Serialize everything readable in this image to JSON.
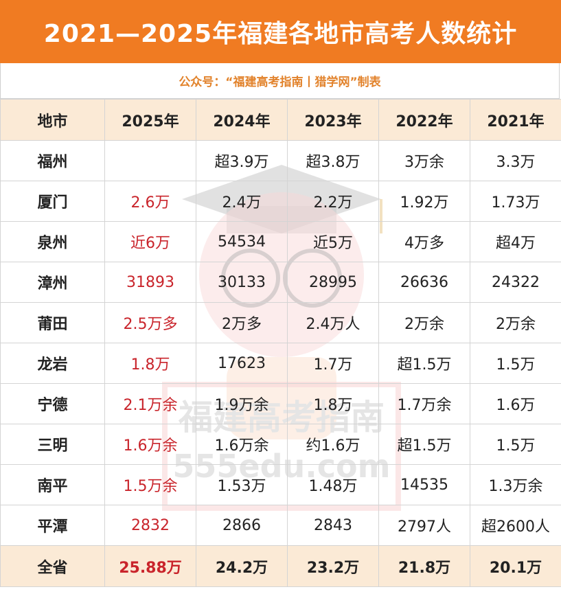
{
  "title": "2021—2025年福建各地市高考人数统计",
  "subtitle": "公众号：“福建高考指南丨猎学网”制表",
  "watermark": {
    "line1": "福建高考指南",
    "line2": "555edu.com"
  },
  "colors": {
    "header_bar": "#f07b22",
    "header_row_bg": "#fbead6",
    "highlight_red": "#c9242b",
    "subtitle": "#e2832c"
  },
  "table": {
    "headers": [
      "地市",
      "2025年",
      "2024年",
      "2023年",
      "2022年",
      "2021年"
    ],
    "rows": [
      [
        "福州",
        "",
        "超3.9万",
        "超3.8万",
        "3万余",
        "3.3万"
      ],
      [
        "厦门",
        "2.6万",
        "2.4万",
        "2.2万",
        "1.92万",
        "1.73万"
      ],
      [
        "泉州",
        "近6万",
        "54534",
        "近5万",
        "4万多",
        "超4万"
      ],
      [
        "漳州",
        "31893",
        "30133",
        "28995",
        "26636",
        "24322"
      ],
      [
        "莆田",
        "2.5万多",
        "2万多",
        "2.4万人",
        "2万余",
        "2万余"
      ],
      [
        "龙岩",
        "1.8万",
        "17623",
        "1.7万",
        "超1.5万",
        "1.5万"
      ],
      [
        "宁德",
        "2.1万余",
        "1.9万余",
        "1.8万",
        "1.7万余",
        "1.6万"
      ],
      [
        "三明",
        "1.6万余",
        "1.6万余",
        "约1.6万",
        "超1.5万",
        "1.5万"
      ],
      [
        "南平",
        "1.5万余",
        "1.53万",
        "1.48万",
        "14535",
        "1.3万余"
      ],
      [
        "平潭",
        "2832",
        "2866",
        "2843",
        "2797人",
        "超2600人"
      ]
    ],
    "total": [
      "全省",
      "25.88万",
      "24.2万",
      "23.2万",
      "21.8万",
      "20.1万"
    ]
  }
}
